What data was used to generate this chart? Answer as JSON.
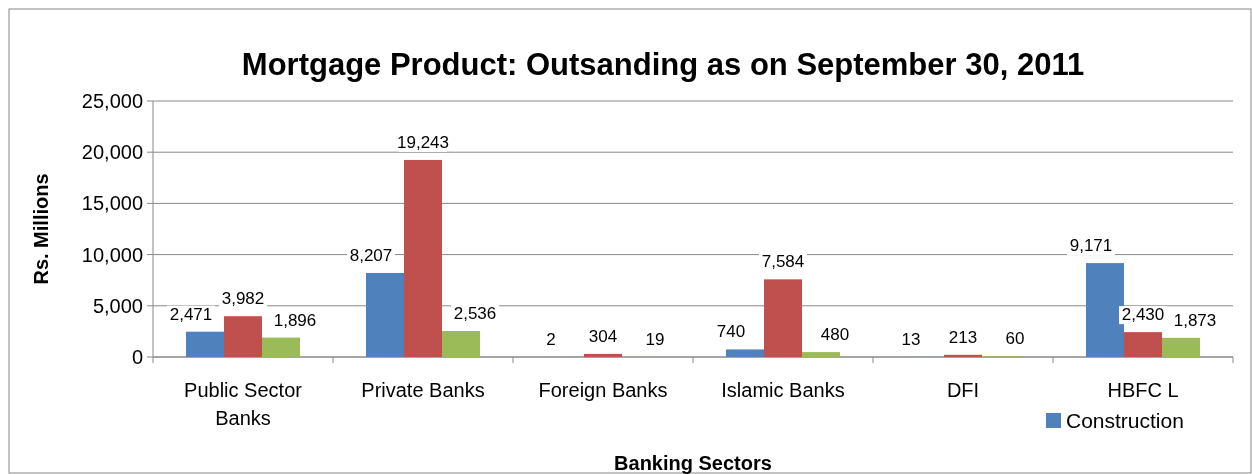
{
  "chart_data": {
    "type": "bar",
    "title": "Mortgage Product: Outsanding as on September 30, 2011",
    "xlabel": "Banking Sectors",
    "ylabel": "Rs. Millions",
    "categories": [
      "Public Sector Banks",
      "Private Banks",
      "Foreign Banks",
      "Islamic Banks",
      "DFI",
      "HBFC L"
    ],
    "series": [
      {
        "name": "Construction",
        "color": "#4f81bd",
        "values": [
          2471,
          8207,
          2,
          740,
          13,
          9171
        ],
        "value_labels": [
          "2,471",
          "8,207",
          "2",
          "740",
          "13",
          "9,171"
        ]
      },
      {
        "color": "#c0504d",
        "values": [
          3982,
          19243,
          304,
          7584,
          213,
          2430
        ],
        "value_labels": [
          "3,982",
          "19,243",
          "304",
          "7,584",
          "213",
          "2,430"
        ]
      },
      {
        "color": "#9bbb59",
        "values": [
          1896,
          2536,
          19,
          480,
          60,
          1873
        ],
        "value_labels": [
          "1,896",
          "2,536",
          "19",
          "480",
          "60",
          "1,873"
        ]
      }
    ],
    "ylim": [
      0,
      25000
    ],
    "yticks": [
      {
        "value": 0,
        "label": "0"
      },
      {
        "value": 5000,
        "label": "5,000"
      },
      {
        "value": 10000,
        "label": "10,000"
      },
      {
        "value": 15000,
        "label": "15,000"
      },
      {
        "value": 20000,
        "label": "20,000"
      },
      {
        "value": 25000,
        "label": "25,000"
      }
    ],
    "grid": "y",
    "legend": "bottom right"
  }
}
